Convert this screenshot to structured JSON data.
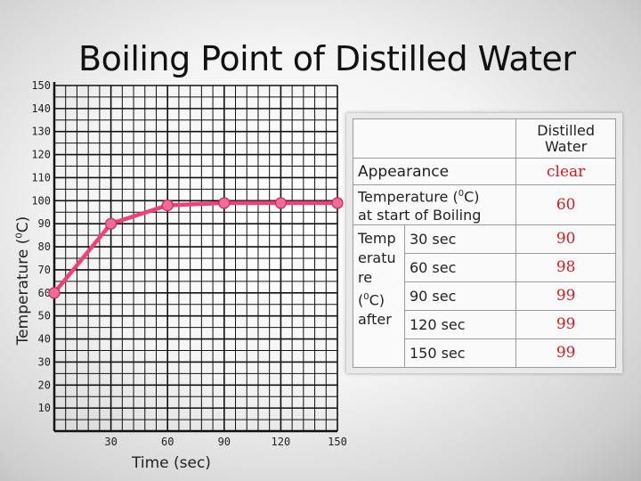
{
  "chart_data": {
    "type": "line",
    "title": "Boiling Point of Distilled Water",
    "xlabel": "Time (sec)",
    "ylabel_prefix": "Temperature (",
    "ylabel_sup": "0",
    "ylabel_suffix": "C)",
    "x_ticks": [
      "30",
      "60",
      "90",
      "120",
      "150"
    ],
    "y_ticks": [
      "10",
      "20",
      "30",
      "40",
      "50",
      "60",
      "70",
      "80",
      "90",
      "100",
      "110",
      "120",
      "130",
      "140",
      "150"
    ],
    "xlim": [
      0,
      150
    ],
    "ylim": [
      0,
      150
    ],
    "grid": true,
    "line_color": "#f0407a",
    "marker_color": "#f06a9a",
    "series": [
      {
        "x": [
          0,
          30,
          60,
          90,
          120,
          150
        ],
        "y": [
          60,
          90,
          98,
          99,
          99,
          99
        ]
      }
    ]
  },
  "table": {
    "header_col": "Distilled Water",
    "appearance_label": "Appearance",
    "appearance_value": "clear",
    "start_label_1": "Temperature (",
    "start_label_sup": "0",
    "start_label_2": "C)",
    "start_label_3": "at start of Boiling",
    "start_value": "60",
    "temp_label_lines": [
      "Temp",
      "eratu",
      "re",
      "(",
      "0",
      "C)",
      "after"
    ],
    "rows": [
      {
        "time": "30 sec",
        "value": "90"
      },
      {
        "time": "60 sec",
        "value": "98"
      },
      {
        "time": "90 sec",
        "value": "99"
      },
      {
        "time": "120 sec",
        "value": "99"
      },
      {
        "time": "150 sec",
        "value": "99"
      }
    ]
  }
}
